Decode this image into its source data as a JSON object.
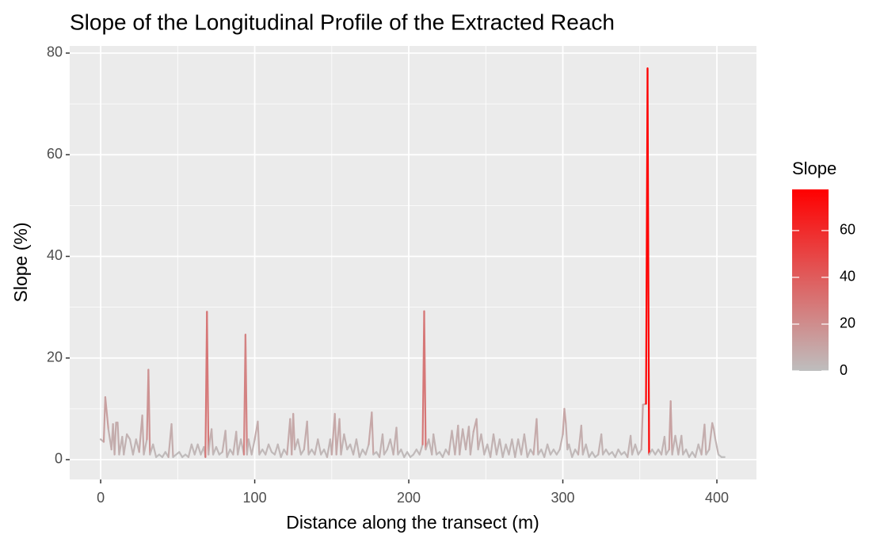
{
  "chart_data": {
    "type": "line",
    "title": "Slope of the Longitudinal Profile of the Extracted Reach",
    "x_label": "Distance along the transect (m)",
    "y_label": "Slope (%)",
    "x": [
      0,
      2,
      3,
      5,
      7,
      8,
      9,
      10,
      11,
      12,
      14,
      15,
      17,
      19,
      21,
      23,
      25,
      27,
      28,
      30,
      31,
      32,
      34,
      36,
      38,
      40,
      42,
      44,
      46,
      47,
      49,
      51,
      53,
      55,
      57,
      59,
      61,
      63,
      65,
      67,
      68,
      69,
      70,
      71,
      72,
      73,
      75,
      77,
      79,
      81,
      82,
      84,
      86,
      88,
      89,
      91,
      93,
      94,
      95,
      96,
      98,
      100,
      102,
      103,
      105,
      107,
      109,
      111,
      113,
      115,
      117,
      119,
      121,
      123,
      124,
      125,
      126,
      128,
      130,
      132,
      134,
      135,
      137,
      139,
      141,
      143,
      145,
      147,
      149,
      150,
      152,
      153,
      155,
      156,
      158,
      160,
      162,
      164,
      166,
      168,
      170,
      172,
      174,
      176,
      177,
      179,
      181,
      183,
      184,
      186,
      188,
      190,
      192,
      193,
      195,
      197,
      199,
      201,
      203,
      205,
      207,
      209,
      210,
      211,
      213,
      215,
      216,
      218,
      220,
      222,
      224,
      226,
      228,
      230,
      232,
      233,
      235,
      237,
      239,
      240,
      242,
      244,
      245,
      247,
      249,
      251,
      253,
      255,
      257,
      259,
      261,
      263,
      265,
      267,
      269,
      271,
      273,
      275,
      277,
      279,
      281,
      283,
      284,
      286,
      288,
      290,
      292,
      294,
      296,
      298,
      300,
      301,
      302,
      303,
      304,
      306,
      308,
      310,
      312,
      313,
      315,
      317,
      319,
      321,
      323,
      325,
      326,
      328,
      330,
      332,
      334,
      336,
      338,
      340,
      342,
      344,
      345,
      347,
      349,
      351,
      352,
      354,
      355,
      356,
      358,
      360,
      362,
      364,
      366,
      367,
      369,
      370,
      371,
      373,
      375,
      377,
      378,
      380,
      382,
      384,
      386,
      388,
      390,
      392,
      393,
      395,
      397,
      398,
      399,
      401,
      403,
      405
    ],
    "series": [
      {
        "name": "Slope",
        "values": [
          4,
          3.5,
          12.3,
          6,
          2,
          7,
          1,
          7.3,
          7.3,
          1,
          4.5,
          1,
          5,
          4,
          1,
          4,
          1.5,
          8.7,
          1,
          4,
          17.7,
          1,
          3,
          0.5,
          1,
          0.5,
          1.5,
          0.5,
          7,
          0.5,
          1,
          1.5,
          0.5,
          1,
          0.5,
          3,
          1,
          3,
          1,
          2.5,
          0.5,
          29.1,
          1,
          4,
          6,
          1,
          2.5,
          1,
          1.5,
          5.7,
          0.5,
          2,
          1,
          5.5,
          1,
          4,
          1,
          24.6,
          1,
          4,
          1,
          4,
          7.5,
          1,
          2,
          1,
          3,
          1.5,
          1,
          3,
          0.5,
          2,
          1,
          8,
          1,
          9,
          2,
          4,
          1,
          2,
          7.5,
          1,
          2,
          1,
          4,
          1,
          2,
          0.5,
          4,
          1,
          9,
          1,
          8,
          1,
          5,
          2,
          3,
          1,
          4,
          0.5,
          2,
          1,
          3,
          9.3,
          1,
          1.5,
          0.5,
          5,
          1,
          2,
          4,
          1,
          6.3,
          1,
          2,
          0.5,
          1.5,
          0.5,
          1,
          2,
          1,
          3,
          29.2,
          2,
          4,
          1,
          5,
          1,
          1.5,
          0.5,
          2,
          1,
          5.7,
          1,
          6.7,
          1,
          6,
          2,
          6.5,
          1,
          5.5,
          8,
          2,
          5,
          1,
          3,
          0.5,
          5,
          1,
          4,
          0.5,
          3,
          1,
          4,
          0.5,
          4,
          1,
          5,
          0.5,
          2,
          1,
          8,
          1,
          2,
          0.5,
          3,
          1,
          2,
          1,
          2,
          5,
          10,
          7,
          2,
          3,
          0.5,
          2,
          1,
          6.7,
          1,
          3,
          0.5,
          1.5,
          0.5,
          1,
          5,
          1,
          2,
          1,
          1.5,
          0.5,
          2,
          1,
          1.5,
          0.5,
          4.7,
          1,
          3,
          1,
          2,
          10.8,
          11,
          77,
          1,
          2,
          1,
          2,
          1,
          4.5,
          1,
          2,
          11.5,
          1,
          4.7,
          1,
          4.7,
          1,
          2,
          0.5,
          1.5,
          0.5,
          3,
          1,
          6.9,
          1,
          2,
          7.2,
          6,
          4,
          1,
          0.5,
          0.5
        ]
      }
    ],
    "xlim": [
      -20.1,
      425.7
    ],
    "xticks": [
      0,
      100,
      200,
      300,
      400
    ],
    "ylim": [
      -3.9,
      81.4
    ],
    "yticks": [
      0,
      20,
      40,
      60,
      80
    ],
    "grid": true,
    "color_scale": {
      "low": "#BEBEBE",
      "high": "#FF0000",
      "limits": [
        0,
        77.6
      ],
      "ticks": [
        0,
        20,
        40,
        60
      ]
    }
  }
}
